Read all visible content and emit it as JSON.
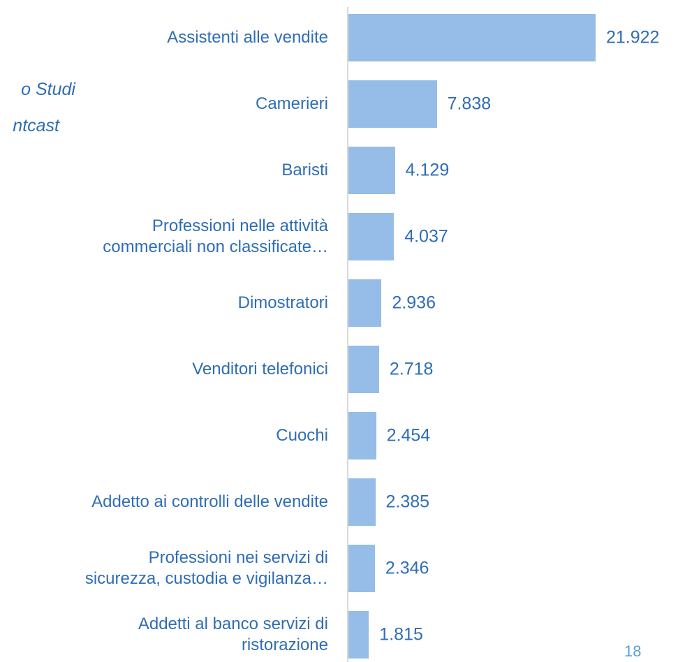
{
  "chart_data": {
    "type": "barh",
    "categories": [
      "Assistenti alle vendite",
      "Camerieri",
      "Baristi",
      "Professioni nelle attività\ncommerciali non classificate…",
      "Dimostratori",
      "Venditori telefonici",
      "Cuochi",
      "Addetto ai controlli delle vendite",
      "Professioni nei servizi di\nsicurezza, custodia e vigilanza…",
      "Addetti al banco servizi di\nristorazione"
    ],
    "values": [
      21922,
      7838,
      4129,
      4037,
      2936,
      2718,
      2454,
      2385,
      2346,
      1815
    ],
    "value_labels": [
      "21.922",
      "7.838",
      "4.129",
      "4.037",
      "2.936",
      "2.718",
      "2.454",
      "2.385",
      "2.346",
      "1.815"
    ],
    "color": "#95bde8"
  },
  "side_text": [
    "o Studi",
    "ntcast"
  ],
  "page_number": "18"
}
